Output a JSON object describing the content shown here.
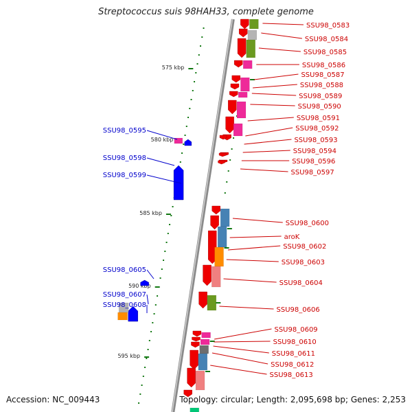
{
  "title": "Streptococcus suis 98HAH33, complete genome",
  "footer": {
    "accession": "Accession: NC_009443",
    "summary": "Topology: circular; Length: 2,095,698 bp; Genes: 2,253"
  },
  "colors": {
    "backbone": "#8a8a8a",
    "right_label": "#cc0000",
    "left_label": "#0000cc",
    "tick": "#117711",
    "forward_gene": "#0000ff",
    "reverse_gene": "#ee0000",
    "cog_green": "#6b9a20",
    "cog_pink": "#ee2a99",
    "cog_blue": "#4682b4",
    "cog_orange": "#ff8c00",
    "cog_salmon": "#f08080",
    "cog_grey": "#b4b4b4",
    "cog_darkgrey": "#6e6e6e",
    "cog_teal": "#00c878"
  },
  "scale_labels": [
    "575 kbp",
    "580 kbp",
    "585 kbp",
    "590 kbp",
    "595 kbp"
  ],
  "right_labels": [
    "SSU98_0583",
    "SSU98_0584",
    "SSU98_0585",
    "SSU98_0586",
    "SSU98_0587",
    "SSU98_0588",
    "SSU98_0589",
    "SSU98_0590",
    "SSU98_0591",
    "SSU98_0592",
    "SSU98_0593",
    "SSU98_0594",
    "SSU98_0596",
    "SSU98_0597",
    "SSU98_0600",
    "aroK",
    "SSU98_0602",
    "SSU98_0603",
    "SSU98_0604",
    "SSU98_0606",
    "SSU98_0609",
    "SSU98_0610",
    "SSU98_0611",
    "SSU98_0612",
    "SSU98_0613"
  ],
  "left_labels": [
    "SSU98_0595",
    "SSU98_0598",
    "SSU98_0599",
    "SSU98_0605",
    "SSU98_0607",
    "SSU98_0608"
  ]
}
